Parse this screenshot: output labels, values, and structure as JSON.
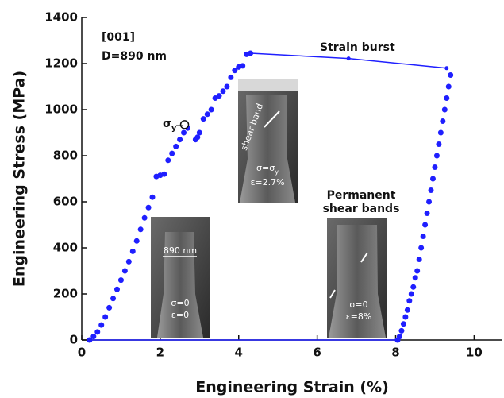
{
  "chart_data": {
    "type": "line",
    "x_label": "Engineering Strain (%)",
    "y_label": "Engineering Stress (MPa)",
    "xlim": [
      0,
      10.7
    ],
    "ylim": [
      0,
      1400
    ],
    "xticks": [
      0,
      2,
      4,
      6,
      8,
      10
    ],
    "yticks": [
      0,
      200,
      400,
      600,
      800,
      1000,
      1200,
      1400
    ],
    "series": [
      {
        "color": "#1f1fff",
        "style": "points",
        "x": [
          0.2,
          0.3,
          0.4,
          0.5,
          0.6,
          0.7,
          0.8,
          0.9,
          1.0,
          1.1,
          1.2,
          1.3,
          1.4,
          1.5,
          1.6,
          1.7,
          1.8,
          1.9,
          2.0,
          2.1,
          2.2,
          2.3,
          2.4,
          2.5,
          2.6,
          2.7,
          2.9,
          2.95,
          3.0,
          3.1,
          3.2,
          3.3,
          3.4,
          3.5,
          3.6,
          3.7,
          3.8,
          3.9,
          4.0,
          4.1,
          4.2,
          4.3
        ],
        "values": [
          0,
          15,
          35,
          65,
          100,
          140,
          180,
          220,
          260,
          300,
          340,
          385,
          430,
          480,
          530,
          575,
          620,
          710,
          715,
          720,
          780,
          810,
          840,
          870,
          900,
          920,
          870,
          880,
          900,
          960,
          980,
          1000,
          1050,
          1060,
          1080,
          1100,
          1140,
          1170,
          1185,
          1190,
          1240,
          1245
        ]
      },
      {
        "color": "#1f1fff",
        "style": "line-points",
        "x": [
          4.3,
          6.8,
          9.3
        ],
        "values": [
          1245,
          1222,
          1180
        ]
      },
      {
        "color": "#1f1fff",
        "style": "points",
        "x": [
          9.4,
          9.35,
          9.3,
          9.25,
          9.2,
          9.15,
          9.1,
          9.05,
          9.0,
          8.95,
          8.9,
          8.85,
          8.8,
          8.75,
          8.7,
          8.65,
          8.6,
          8.55,
          8.5,
          8.45,
          8.4,
          8.35,
          8.3,
          8.25,
          8.2,
          8.15,
          8.1,
          8.05
        ],
        "values": [
          1150,
          1100,
          1050,
          1000,
          950,
          900,
          850,
          800,
          750,
          700,
          650,
          600,
          550,
          500,
          450,
          400,
          350,
          300,
          270,
          230,
          200,
          170,
          130,
          100,
          70,
          40,
          15,
          0
        ]
      },
      {
        "color": "#1f1fff",
        "style": "line",
        "x": [
          0.2,
          8.05
        ],
        "values": [
          0,
          0
        ]
      },
      {
        "color": "#1f1fff",
        "style": "open",
        "x": [
          2.62
        ],
        "values": [
          935
        ]
      }
    ],
    "annotations": {
      "orientation": "[001]",
      "diameter": "D=890 nm",
      "burst": "Strain burst",
      "yield": {
        "symbol": "σ",
        "sub": "y"
      },
      "inset1": {
        "width": "890 nm",
        "stress": "σ=0",
        "strain": "ε=0"
      },
      "inset2": {
        "band": "shear band",
        "stress": {
          "main": "σ=σ",
          "sub": "y"
        },
        "strain": "ε=2.7%"
      },
      "inset3": {
        "title1": "Permanent",
        "title2": "shear bands",
        "stress": "σ=0",
        "strain": "ε=8%"
      }
    }
  }
}
